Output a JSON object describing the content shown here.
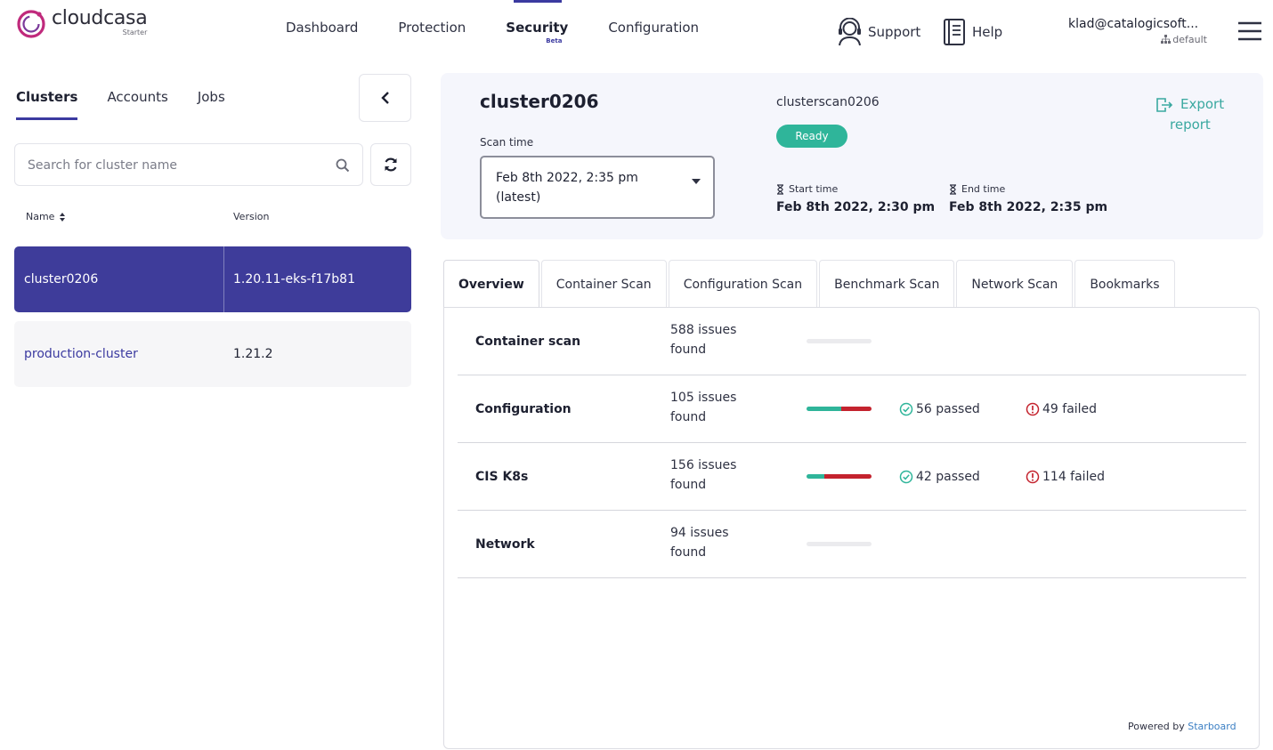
{
  "brand": {
    "name": "cloudcasa",
    "tier": "Starter",
    "color": "#c02a7c"
  },
  "nav": {
    "items": [
      "Dashboard",
      "Protection",
      "Security",
      "Configuration"
    ],
    "active": "Security",
    "security_badge": "Beta"
  },
  "header_actions": {
    "support_label": "Support",
    "help_label": "Help",
    "user_email": "klad@catalogicsoft...",
    "user_org": "default"
  },
  "sidebar": {
    "tabs": [
      "Clusters",
      "Accounts",
      "Jobs"
    ],
    "active_tab": "Clusters",
    "search": {
      "placeholder": "Search for cluster name",
      "value": ""
    },
    "columns": {
      "name": "Name",
      "version": "Version"
    },
    "clusters": [
      {
        "name": "cluster0206",
        "version": "1.20.11-eks-f17b81",
        "selected": true
      },
      {
        "name": "production-cluster",
        "version": "1.21.2",
        "selected": false
      }
    ]
  },
  "cluster": {
    "title": "cluster0206",
    "scan_time_label": "Scan time",
    "scan_time_value": "Feb 8th 2022, 2:35 pm (latest)",
    "scan_name": "clusterscan0206",
    "status": "Ready",
    "start_label": "Start time",
    "start_value": "Feb 8th 2022, 2:30 pm",
    "end_label": "End time",
    "end_value": "Feb 8th 2022, 2:35 pm",
    "export_line1": "Export",
    "export_line2": "report"
  },
  "tabs": [
    "Overview",
    "Container Scan",
    "Configuration Scan",
    "Benchmark Scan",
    "Network Scan",
    "Bookmarks"
  ],
  "active_tab": "Overview",
  "overview": [
    {
      "name": "Container scan",
      "issues": "588 issues found",
      "passed": null,
      "failed": null,
      "passed_label": "",
      "failed_label": ""
    },
    {
      "name": "Configuration",
      "issues": "105 issues found",
      "passed": 56,
      "failed": 49,
      "passed_label": "56 passed",
      "failed_label": "49 failed"
    },
    {
      "name": "CIS K8s",
      "issues": "156 issues found",
      "passed": 42,
      "failed": 114,
      "passed_label": "42 passed",
      "failed_label": "114 failed"
    },
    {
      "name": "Network",
      "issues": "94 issues found",
      "passed": null,
      "failed": null,
      "passed_label": "",
      "failed_label": ""
    }
  ],
  "footer": {
    "powered_by": "Powered by",
    "provider": "Starboard"
  },
  "colors": {
    "accent": "#3e3c9a",
    "ready": "#2fb59a",
    "pass": "#2fb59a",
    "fail": "#c4232e",
    "link": "#3aa8a0"
  }
}
